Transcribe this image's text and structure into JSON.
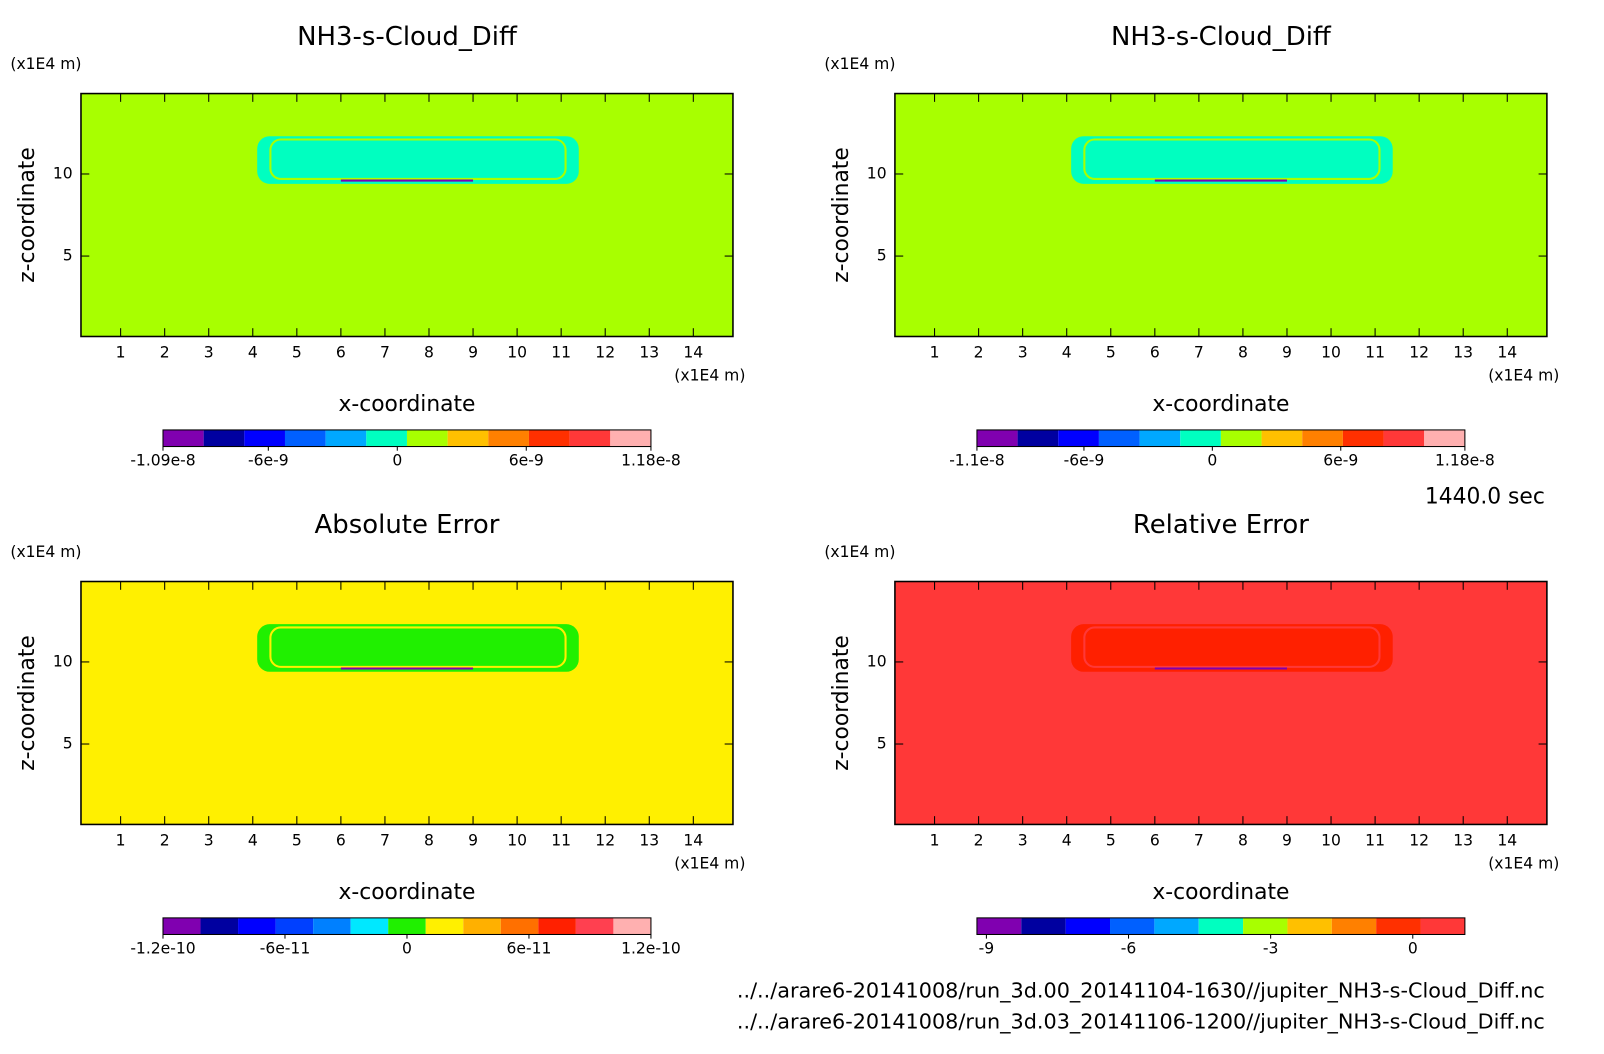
{
  "chart_data": [
    {
      "type": "contour",
      "title": "NH3-s-Cloud_Diff",
      "x_label": "x-coordinate",
      "y_label": "z-coordinate",
      "x_unit": "(x1E4 m)",
      "y_unit": "(x1E4 m)",
      "xlim": [
        0.1,
        14.9
      ],
      "ylim": [
        0.1,
        14.9
      ],
      "xticks": [
        1,
        2,
        3,
        4,
        5,
        6,
        7,
        8,
        9,
        10,
        11,
        12,
        13,
        14
      ],
      "yticks": [
        5,
        10
      ],
      "field_color": "#a8ff00",
      "feature_color": "#00ffc0",
      "colorbar": {
        "colors": [
          "#8000b0",
          "#0000a0",
          "#0000ff",
          "#0060ff",
          "#00a8ff",
          "#00ffc0",
          "#a8ff00",
          "#ffc000",
          "#ff8000",
          "#ff3000",
          "#ff3838",
          "#ffb0b0"
        ],
        "lim": [
          -1.09e-08,
          1.18e-08
        ],
        "ticks": [
          -1.09e-08,
          -6e-09,
          0,
          6e-09,
          1.18e-08
        ]
      }
    },
    {
      "type": "contour",
      "title": "NH3-s-Cloud_Diff",
      "x_label": "x-coordinate",
      "y_label": "z-coordinate",
      "x_unit": "(x1E4 m)",
      "y_unit": "(x1E4 m)",
      "xlim": [
        0.1,
        14.9
      ],
      "ylim": [
        0.1,
        14.9
      ],
      "xticks": [
        1,
        2,
        3,
        4,
        5,
        6,
        7,
        8,
        9,
        10,
        11,
        12,
        13,
        14
      ],
      "yticks": [
        5,
        10
      ],
      "field_color": "#a8ff00",
      "feature_color": "#00ffc0",
      "colorbar": {
        "colors": [
          "#8000b0",
          "#0000a0",
          "#0000ff",
          "#0060ff",
          "#00a8ff",
          "#00ffc0",
          "#a8ff00",
          "#ffc000",
          "#ff8000",
          "#ff3000",
          "#ff3838",
          "#ffb0b0"
        ],
        "lim": [
          -1.1e-08,
          1.18e-08
        ],
        "ticks": [
          -1.1e-08,
          -6e-09,
          0,
          6e-09,
          1.18e-08
        ]
      }
    },
    {
      "type": "contour",
      "title": "Absolute Error",
      "x_label": "x-coordinate",
      "y_label": "z-coordinate",
      "x_unit": "(x1E4 m)",
      "y_unit": "(x1E4 m)",
      "xlim": [
        0.1,
        14.9
      ],
      "ylim": [
        0.1,
        14.9
      ],
      "xticks": [
        1,
        2,
        3,
        4,
        5,
        6,
        7,
        8,
        9,
        10,
        11,
        12,
        13,
        14
      ],
      "yticks": [
        5,
        10
      ],
      "field_color": "#fff000",
      "feature_color": "#20f000",
      "colorbar": {
        "colors": [
          "#8000b0",
          "#0000a0",
          "#0000ff",
          "#0040ff",
          "#0080ff",
          "#00e8ff",
          "#20f000",
          "#fff000",
          "#ffb000",
          "#ff7000",
          "#ff2000",
          "#ff4050",
          "#ffb0b0"
        ],
        "lim": [
          -1.2e-10,
          1.2e-10
        ],
        "ticks": [
          -1.2e-10,
          -6e-11,
          0,
          6e-11,
          1.2e-10
        ]
      }
    },
    {
      "type": "contour",
      "title": "Relative Error",
      "x_label": "x-coordinate",
      "y_label": "z-coordinate",
      "x_unit": "(x1E4 m)",
      "y_unit": "(x1E4 m)",
      "xlim": [
        0.1,
        14.9
      ],
      "ylim": [
        0.1,
        14.9
      ],
      "xticks": [
        1,
        2,
        3,
        4,
        5,
        6,
        7,
        8,
        9,
        10,
        11,
        12,
        13,
        14
      ],
      "yticks": [
        5,
        10
      ],
      "field_color": "#ff3838",
      "feature_color": "#ff2000",
      "colorbar": {
        "colors": [
          "#8000b0",
          "#0000a0",
          "#0000ff",
          "#0060ff",
          "#00a8ff",
          "#00ffc0",
          "#a8ff00",
          "#ffc000",
          "#ff8000",
          "#ff3000",
          "#ff3838"
        ],
        "lim": [
          -9.2,
          1.1
        ],
        "ticks": [
          -9,
          -6,
          -3,
          0
        ]
      }
    }
  ],
  "time_label": "1440.0 sec",
  "files": [
    "../../arare6-20141008/run_3d.00_20141104-1630//jupiter_NH3-s-Cloud_Diff.nc",
    "../../arare6-20141008/run_3d.03_20141106-1200//jupiter_NH3-s-Cloud_Diff.nc"
  ]
}
